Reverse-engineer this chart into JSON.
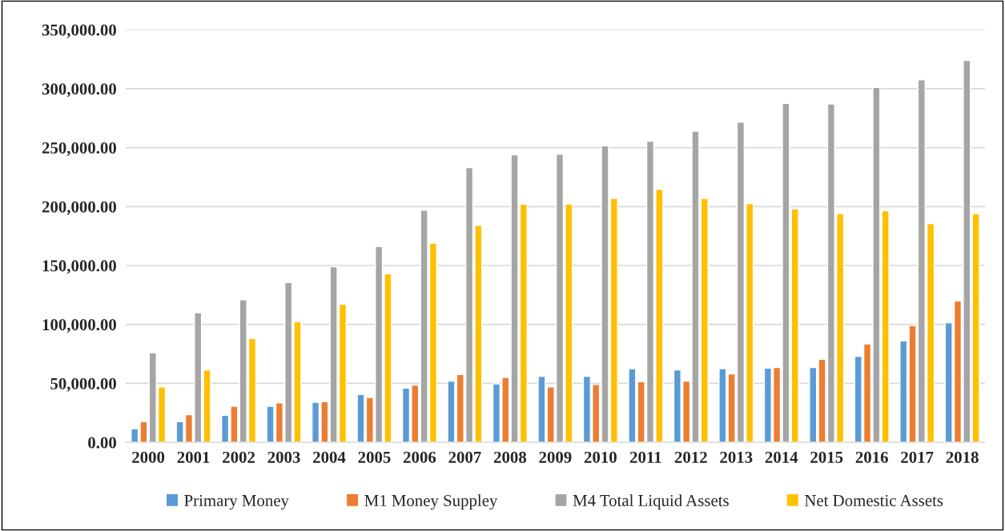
{
  "chart_data": {
    "type": "bar",
    "categories": [
      "2000",
      "2001",
      "2002",
      "2003",
      "2004",
      "2005",
      "2006",
      "2007",
      "2008",
      "2009",
      "2010",
      "2011",
      "2012",
      "2013",
      "2014",
      "2015",
      "2016",
      "2017",
      "2018"
    ],
    "series": [
      {
        "name": "Primary Money",
        "color": "#5b9bd5",
        "values": [
          11500,
          17500,
          23000,
          30500,
          34000,
          40500,
          46000,
          52000,
          49500,
          56000,
          56000,
          62500,
          61500,
          62500,
          63000,
          63500,
          73000,
          86000,
          101500
        ]
      },
      {
        "name": "M1 Money Suppley",
        "color": "#ed7d31",
        "values": [
          17500,
          23500,
          30500,
          33500,
          34500,
          38000,
          48500,
          57500,
          55000,
          47000,
          49000,
          51500,
          52000,
          58000,
          63500,
          70500,
          83500,
          99000,
          120000
        ]
      },
      {
        "name": "M4 Total Liquid Assets",
        "color": "#a5a5a5",
        "values": [
          76000,
          110000,
          121000,
          135500,
          149000,
          166000,
          197000,
          233000,
          244000,
          244500,
          251500,
          255500,
          264000,
          271500,
          287500,
          287000,
          301000,
          307500,
          324000
        ]
      },
      {
        "name": "Net Domestic Assets",
        "color": "#ffc000",
        "values": [
          47000,
          61500,
          88000,
          102500,
          117000,
          143000,
          169000,
          184000,
          202000,
          202000,
          207000,
          214500,
          207000,
          202500,
          198000,
          194000,
          196500,
          185500,
          194000
        ]
      }
    ],
    "ylim": [
      0,
      350000
    ],
    "yticks": [
      {
        "value": 0,
        "label": "0.00"
      },
      {
        "value": 50000,
        "label": "50,000.00"
      },
      {
        "value": 100000,
        "label": "100,000.00"
      },
      {
        "value": 150000,
        "label": "150,000.00"
      },
      {
        "value": 200000,
        "label": "200,000.00"
      },
      {
        "value": 250000,
        "label": "250,000.00"
      },
      {
        "value": 300000,
        "label": "300,000.00"
      },
      {
        "value": 350000,
        "label": "350,000.00"
      }
    ],
    "grid": "y",
    "legend": "bottom"
  }
}
